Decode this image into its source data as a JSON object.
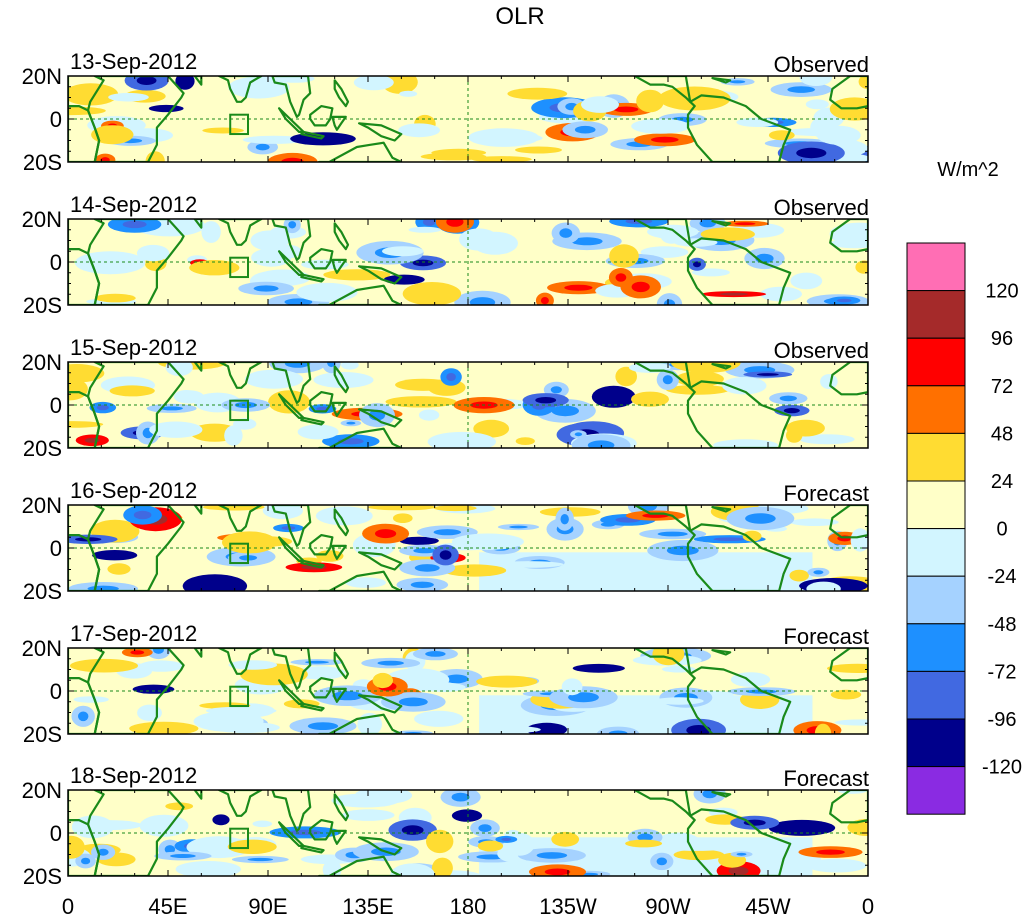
{
  "chart_data": {
    "type": "heatmap",
    "title": "OLR",
    "units": "W/m^2",
    "panels": [
      {
        "date": "13-Sep-2012",
        "kind": "Observed"
      },
      {
        "date": "14-Sep-2012",
        "kind": "Observed"
      },
      {
        "date": "15-Sep-2012",
        "kind": "Observed"
      },
      {
        "date": "16-Sep-2012",
        "kind": "Forecast"
      },
      {
        "date": "17-Sep-2012",
        "kind": "Forecast"
      },
      {
        "date": "18-Sep-2012",
        "kind": "Forecast"
      }
    ],
    "y_ticks": [
      "20N",
      "0",
      "20S"
    ],
    "y_range": [
      -20,
      20
    ],
    "x_ticks": [
      "0",
      "45E",
      "90E",
      "135E",
      "180",
      "135W",
      "90W",
      "45W",
      "0"
    ],
    "x_range": [
      0,
      360
    ],
    "colorbar": {
      "colors": [
        "#ff6eb4",
        "#a52a2a",
        "#ff0000",
        "#ff7000",
        "#ffdc32",
        "#ffffc8",
        "#d2f5ff",
        "#a5d2ff",
        "#1e90ff",
        "#4169e1",
        "#00008b",
        "#8a2be2"
      ],
      "labels": [
        "120",
        "96",
        "72",
        "48",
        "24",
        "0",
        "-24",
        "-48",
        "-72",
        "-96",
        "-120"
      ]
    }
  }
}
